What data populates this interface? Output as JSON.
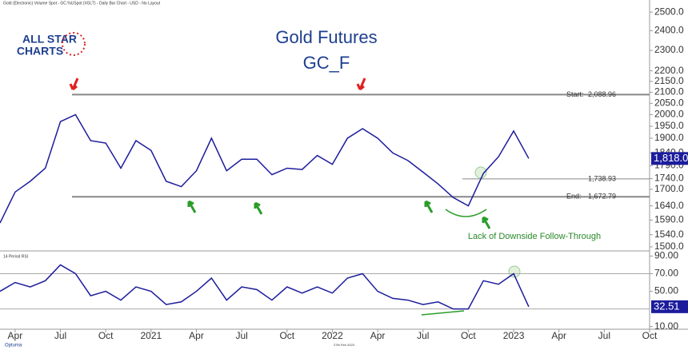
{
  "header": "Gold (Electronic) Volume Spot - GC.%USpot (#GLT) - Daily Bar Chart - USD - No Layout",
  "logo": {
    "line1": "ALL STAR",
    "line2": "CHARTS"
  },
  "footer": {
    "brand": "Optuma",
    "date": "27th Feb 2023"
  },
  "chart_data": [
    {
      "type": "line",
      "title": "Gold Futures",
      "subtitle": "GC_F",
      "log_scale": true,
      "x": [
        "2020-03",
        "2020-04",
        "2020-05",
        "2020-06",
        "2020-07",
        "2020-08",
        "2020-09",
        "2020-10",
        "2020-11",
        "2020-12",
        "2021-01",
        "2021-02",
        "2021-03",
        "2021-04",
        "2021-05",
        "2021-06",
        "2021-07",
        "2021-08",
        "2021-09",
        "2021-10",
        "2021-11",
        "2021-12",
        "2022-01",
        "2022-02",
        "2022-03",
        "2022-04",
        "2022-05",
        "2022-06",
        "2022-07",
        "2022-08",
        "2022-09",
        "2022-10",
        "2022-11",
        "2022-12",
        "2023-01",
        "2023-02"
      ],
      "xlim": [
        "2020-03",
        "2023-10"
      ],
      "series": [
        {
          "name": "Gold",
          "color": "#1c1c9c",
          "values": [
            1580,
            1690,
            1730,
            1780,
            1970,
            2000,
            1890,
            1880,
            1780,
            1890,
            1850,
            1730,
            1710,
            1770,
            1900,
            1770,
            1815,
            1815,
            1755,
            1780,
            1775,
            1830,
            1795,
            1900,
            1940,
            1900,
            1840,
            1810,
            1765,
            1720,
            1670,
            1640,
            1760,
            1825,
            1930,
            1818
          ],
          "last_label": {
            "value": 1818,
            "label": "1,818.0"
          }
        }
      ],
      "ylim": [
        1492,
        2531
      ],
      "yticks": [
        {
          "value": 1500,
          "label": "1500.0"
        },
        {
          "value": 1540,
          "label": "1540.0"
        },
        {
          "value": 1590,
          "label": "1590.0"
        },
        {
          "value": 1640,
          "label": "1640.0"
        },
        {
          "value": 1700,
          "label": "1700.0"
        },
        {
          "value": 1740,
          "label": "1740.0"
        },
        {
          "value": 1790,
          "label": "1790.0"
        },
        {
          "value": 1840,
          "label": "1840.0"
        },
        {
          "value": 1900,
          "label": "1900.0"
        },
        {
          "value": 1950,
          "label": "1950.0"
        },
        {
          "value": 2000,
          "label": "2000.0"
        },
        {
          "value": 2050,
          "label": "2050.0"
        },
        {
          "value": 2100,
          "label": "2100.0"
        },
        {
          "value": 2150,
          "label": "2150.0"
        },
        {
          "value": 2200,
          "label": "2200.0"
        },
        {
          "value": 2300,
          "label": "2300.0"
        },
        {
          "value": 2400,
          "label": "2400.0"
        },
        {
          "value": 2500,
          "label": "2500.0"
        }
      ],
      "levels": [
        {
          "value": 2088.96,
          "label": "2,088.96",
          "prefix": "Start:"
        },
        {
          "value": 1738.93,
          "label": "1,738.93"
        },
        {
          "value": 1672.79,
          "label": "1,672.79",
          "prefix": "End:"
        }
      ],
      "annotation": "Lack of Downside Follow-Through"
    },
    {
      "type": "line",
      "title": "14 Period RSI",
      "x": [
        "2020-03",
        "2020-04",
        "2020-05",
        "2020-06",
        "2020-07",
        "2020-08",
        "2020-09",
        "2020-10",
        "2020-11",
        "2020-12",
        "2021-01",
        "2021-02",
        "2021-03",
        "2021-04",
        "2021-05",
        "2021-06",
        "2021-07",
        "2021-08",
        "2021-09",
        "2021-10",
        "2021-11",
        "2021-12",
        "2022-01",
        "2022-02",
        "2022-03",
        "2022-04",
        "2022-05",
        "2022-06",
        "2022-07",
        "2022-08",
        "2022-09",
        "2022-10",
        "2022-11",
        "2022-12",
        "2023-01",
        "2023-02"
      ],
      "xlim": [
        "2020-03",
        "2023-10"
      ],
      "xticks": [
        {
          "value": "2020-04",
          "label": "Apr"
        },
        {
          "value": "2020-07",
          "label": "Jul"
        },
        {
          "value": "2020-10",
          "label": "Oct"
        },
        {
          "value": "2021-01",
          "label": "2021"
        },
        {
          "value": "2021-04",
          "label": "Apr"
        },
        {
          "value": "2021-07",
          "label": "Jul"
        },
        {
          "value": "2021-10",
          "label": "Oct"
        },
        {
          "value": "2022-01",
          "label": "2022"
        },
        {
          "value": "2022-04",
          "label": "Apr"
        },
        {
          "value": "2022-07",
          "label": "Jul"
        },
        {
          "value": "2022-10",
          "label": "Oct"
        },
        {
          "value": "2023-01",
          "label": "2023"
        },
        {
          "value": "2023-04",
          "label": "Apr"
        },
        {
          "value": "2023-07",
          "label": "Jul"
        },
        {
          "value": "2023-10",
          "label": "Oct"
        }
      ],
      "series": [
        {
          "name": "RSI",
          "color": "#1c1c9c",
          "values": [
            50,
            60,
            55,
            62,
            80,
            70,
            45,
            50,
            40,
            55,
            50,
            35,
            38,
            50,
            65,
            40,
            55,
            52,
            40,
            55,
            48,
            55,
            48,
            65,
            70,
            50,
            42,
            40,
            35,
            38,
            30,
            30,
            62,
            58,
            70,
            32.51
          ],
          "last_label": 32.51
        }
      ],
      "ylim": [
        7,
        94
      ],
      "yticks": [
        {
          "value": 10,
          "label": "10.00"
        },
        {
          "value": 50,
          "label": "50.00"
        },
        {
          "value": 70,
          "label": "70.00"
        },
        {
          "value": 90,
          "label": "90.00"
        }
      ],
      "bands": [
        70,
        30
      ]
    }
  ]
}
